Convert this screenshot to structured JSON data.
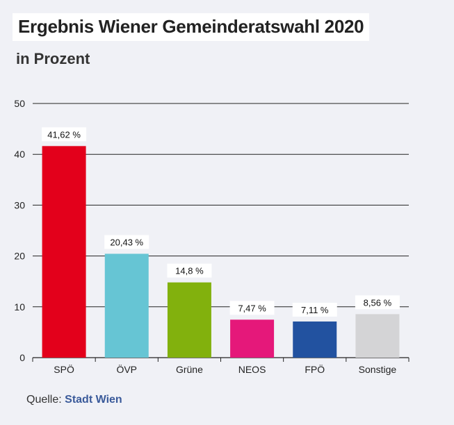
{
  "title": "Ergebnis Wiener Gemeinderatswahl 2020",
  "subtitle": "in Prozent",
  "source": {
    "label": "Quelle:",
    "org": "Stadt Wien"
  },
  "chart_data": {
    "type": "bar",
    "categories": [
      "SPÖ",
      "ÖVP",
      "Grüne",
      "NEOS",
      "FPÖ",
      "Sonstige"
    ],
    "values": [
      41.62,
      20.43,
      14.8,
      7.47,
      7.11,
      8.56
    ],
    "value_labels": [
      "41,62 %",
      "20,43 %",
      "14,8 %",
      "7,47 %",
      "7,11 %",
      "8,56 %"
    ],
    "colors": [
      "#e3001b",
      "#66c5d4",
      "#82b10d",
      "#e5187a",
      "#2252a0",
      "#d4d4d6"
    ],
    "ylim": [
      0,
      50
    ],
    "yticks": [
      0,
      10,
      20,
      30,
      40,
      50
    ],
    "grid": true,
    "legend": "none"
  }
}
